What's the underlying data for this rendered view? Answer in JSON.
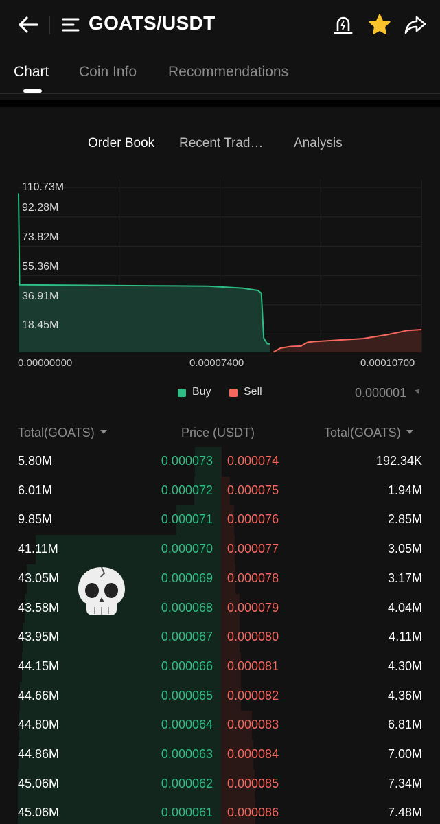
{
  "header": {
    "pair": "GOATS/USDT",
    "icons": {
      "back": "back-arrow-icon",
      "menu": "menu-icon",
      "alarm": "price-alert-icon",
      "favorite": "star-icon",
      "share": "share-icon"
    },
    "favorite_color": "#f7c22b"
  },
  "tabs": [
    {
      "label": "Chart",
      "active": true
    },
    {
      "label": "Coin Info",
      "active": false
    },
    {
      "label": "Recommendations",
      "active": false
    }
  ],
  "subtabs": [
    {
      "label": "Order Book",
      "active": true
    },
    {
      "label": "Recent Trad…",
      "active": false
    },
    {
      "label": "Analysis",
      "active": false
    }
  ],
  "colors": {
    "buy": "#2ebd85",
    "sell": "#f6685e",
    "background": "#121212"
  },
  "chart_data": {
    "type": "area",
    "y_ticks": [
      "110.73M",
      "92.28M",
      "73.82M",
      "55.36M",
      "36.91M",
      "18.45M"
    ],
    "x_ticks": [
      "0.00000000",
      "0.00007400",
      "0.00010700"
    ],
    "legend": [
      {
        "name": "Buy",
        "color": "#2ebd85"
      },
      {
        "name": "Sell",
        "color": "#f6685e"
      }
    ],
    "ylim": [
      0,
      120000000
    ],
    "series": [
      {
        "name": "Buy",
        "points": [
          [
            0.0,
            110730000
          ],
          [
            3e-07,
            47000000
          ],
          [
            4e-05,
            46300000
          ],
          [
            5.5e-05,
            46000000
          ],
          [
            6.5e-05,
            44660000
          ],
          [
            6.95e-05,
            43050000
          ],
          [
            7.05e-05,
            41110000
          ],
          [
            7.12e-05,
            9850000
          ],
          [
            7.22e-05,
            6010000
          ],
          [
            7.3e-05,
            5800000
          ]
        ]
      },
      {
        "name": "Sell",
        "points": [
          [
            7.4e-05,
            192340
          ],
          [
            7.6e-05,
            2850000
          ],
          [
            7.9e-05,
            4040000
          ],
          [
            8.2e-05,
            4360000
          ],
          [
            8.4e-05,
            7000000
          ],
          [
            8.6e-05,
            7480000
          ],
          [
            0.0001,
            9500000
          ],
          [
            0.000107,
            12200000
          ],
          [
            0.000113,
            15200000
          ],
          [
            0.000117,
            15800000
          ]
        ]
      }
    ]
  },
  "precision": "0.000001",
  "order_book": {
    "headers": {
      "bid_total": "Total(GOATS)",
      "price": "Price (USDT)",
      "ask_total": "Total(GOATS)"
    },
    "rows": [
      {
        "bid_total": "5.80M",
        "bid_price": "0.000073",
        "ask_price": "0.000074",
        "ask_total": "192.34K"
      },
      {
        "bid_total": "6.01M",
        "bid_price": "0.000072",
        "ask_price": "0.000075",
        "ask_total": "1.94M"
      },
      {
        "bid_total": "9.85M",
        "bid_price": "0.000071",
        "ask_price": "0.000076",
        "ask_total": "2.85M"
      },
      {
        "bid_total": "41.11M",
        "bid_price": "0.000070",
        "ask_price": "0.000077",
        "ask_total": "3.05M"
      },
      {
        "bid_total": "43.05M",
        "bid_price": "0.000069",
        "ask_price": "0.000078",
        "ask_total": "3.17M"
      },
      {
        "bid_total": "43.58M",
        "bid_price": "0.000068",
        "ask_price": "0.000079",
        "ask_total": "4.04M"
      },
      {
        "bid_total": "43.95M",
        "bid_price": "0.000067",
        "ask_price": "0.000080",
        "ask_total": "4.11M"
      },
      {
        "bid_total": "44.15M",
        "bid_price": "0.000066",
        "ask_price": "0.000081",
        "ask_total": "4.30M"
      },
      {
        "bid_total": "44.66M",
        "bid_price": "0.000065",
        "ask_price": "0.000082",
        "ask_total": "4.36M"
      },
      {
        "bid_total": "44.80M",
        "bid_price": "0.000064",
        "ask_price": "0.000083",
        "ask_total": "6.81M"
      },
      {
        "bid_total": "44.86M",
        "bid_price": "0.000063",
        "ask_price": "0.000084",
        "ask_total": "7.00M"
      },
      {
        "bid_total": "45.06M",
        "bid_price": "0.000062",
        "ask_price": "0.000085",
        "ask_total": "7.34M"
      },
      {
        "bid_total": "45.06M",
        "bid_price": "0.000061",
        "ask_price": "0.000086",
        "ask_total": "7.48M"
      }
    ]
  },
  "overlay": {
    "icon": "skull-emoji-icon"
  }
}
